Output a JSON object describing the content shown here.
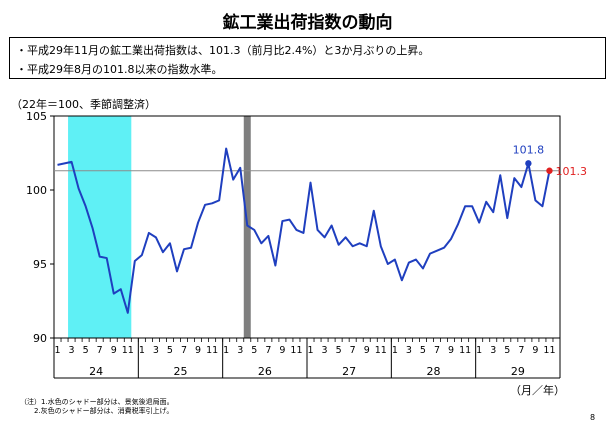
{
  "page": {
    "title": "鉱工業出荷指数の動向",
    "bullets": [
      "・平成29年11月の鉱工業出荷指数は、101.3（前月比2.4%）と3か月ぶりの上昇。",
      "・平成29年8月の101.8以来の指数水準。"
    ],
    "unit_note": "（22年＝100、季節調整済）",
    "footnotes": [
      "（注）1.水色のシャドー部分は、景気後退局面。",
      "2.灰色のシャドー部分は、消費税率引上げ。"
    ],
    "page_number": "8"
  },
  "chart_data": {
    "type": "line",
    "title": "",
    "xlabel": "（月／年）",
    "ylabel": "",
    "ylim": [
      90,
      105
    ],
    "yticks": [
      "90",
      "95",
      "100",
      "105"
    ],
    "month_tick_labels": [
      "1",
      "3",
      "5",
      "7",
      "9",
      "11"
    ],
    "years": [
      "24",
      "25",
      "26",
      "27",
      "28",
      "29"
    ],
    "reference_line": 101.3,
    "shading": [
      {
        "kind": "recession",
        "color": "#5ff0f5",
        "from": "2012-03",
        "to": "2012-11"
      },
      {
        "kind": "consumption-tax",
        "color": "#7f7f7f",
        "at": "2014-04"
      }
    ],
    "annotations": [
      {
        "label": "101.8",
        "x": "2017-08",
        "y": 101.8,
        "color": "#1f3fbf"
      },
      {
        "label": "101.3",
        "x": "2017-11",
        "y": 101.3,
        "color": "#e02020"
      }
    ],
    "series": [
      {
        "color": "#1f3fbf",
        "x": [
          "2012-01",
          "2012-02",
          "2012-03",
          "2012-04",
          "2012-05",
          "2012-06",
          "2012-07",
          "2012-08",
          "2012-09",
          "2012-10",
          "2012-11",
          "2012-12",
          "2013-01",
          "2013-02",
          "2013-03",
          "2013-04",
          "2013-05",
          "2013-06",
          "2013-07",
          "2013-08",
          "2013-09",
          "2013-10",
          "2013-11",
          "2013-12",
          "2014-01",
          "2014-02",
          "2014-03",
          "2014-04",
          "2014-05",
          "2014-06",
          "2014-07",
          "2014-08",
          "2014-09",
          "2014-10",
          "2014-11",
          "2014-12",
          "2015-01",
          "2015-02",
          "2015-03",
          "2015-04",
          "2015-05",
          "2015-06",
          "2015-07",
          "2015-08",
          "2015-09",
          "2015-10",
          "2015-11",
          "2015-12",
          "2016-01",
          "2016-02",
          "2016-03",
          "2016-04",
          "2016-05",
          "2016-06",
          "2016-07",
          "2016-08",
          "2016-09",
          "2016-10",
          "2016-11",
          "2016-12",
          "2017-01",
          "2017-02",
          "2017-03",
          "2017-04",
          "2017-05",
          "2017-06",
          "2017-07",
          "2017-08",
          "2017-09",
          "2017-10",
          "2017-11"
        ],
        "values": [
          101.7,
          101.8,
          101.9,
          100.1,
          98.9,
          97.4,
          95.5,
          95.4,
          93.0,
          93.3,
          91.7,
          95.2,
          95.6,
          97.1,
          96.8,
          95.8,
          96.4,
          94.5,
          96.0,
          96.1,
          97.8,
          99.0,
          99.1,
          99.3,
          102.8,
          100.7,
          101.5,
          97.6,
          97.3,
          96.4,
          96.9,
          94.9,
          97.9,
          98.0,
          97.3,
          97.1,
          100.5,
          97.3,
          96.8,
          97.6,
          96.3,
          96.8,
          96.2,
          96.4,
          96.2,
          98.6,
          96.2,
          95.0,
          95.3,
          93.9,
          95.1,
          95.3,
          94.7,
          95.7,
          95.9,
          96.1,
          96.7,
          97.7,
          98.9,
          98.9,
          97.8,
          99.2,
          98.5,
          101.0,
          98.1,
          100.8,
          100.2,
          101.8,
          99.3,
          98.9,
          101.3
        ]
      }
    ]
  }
}
